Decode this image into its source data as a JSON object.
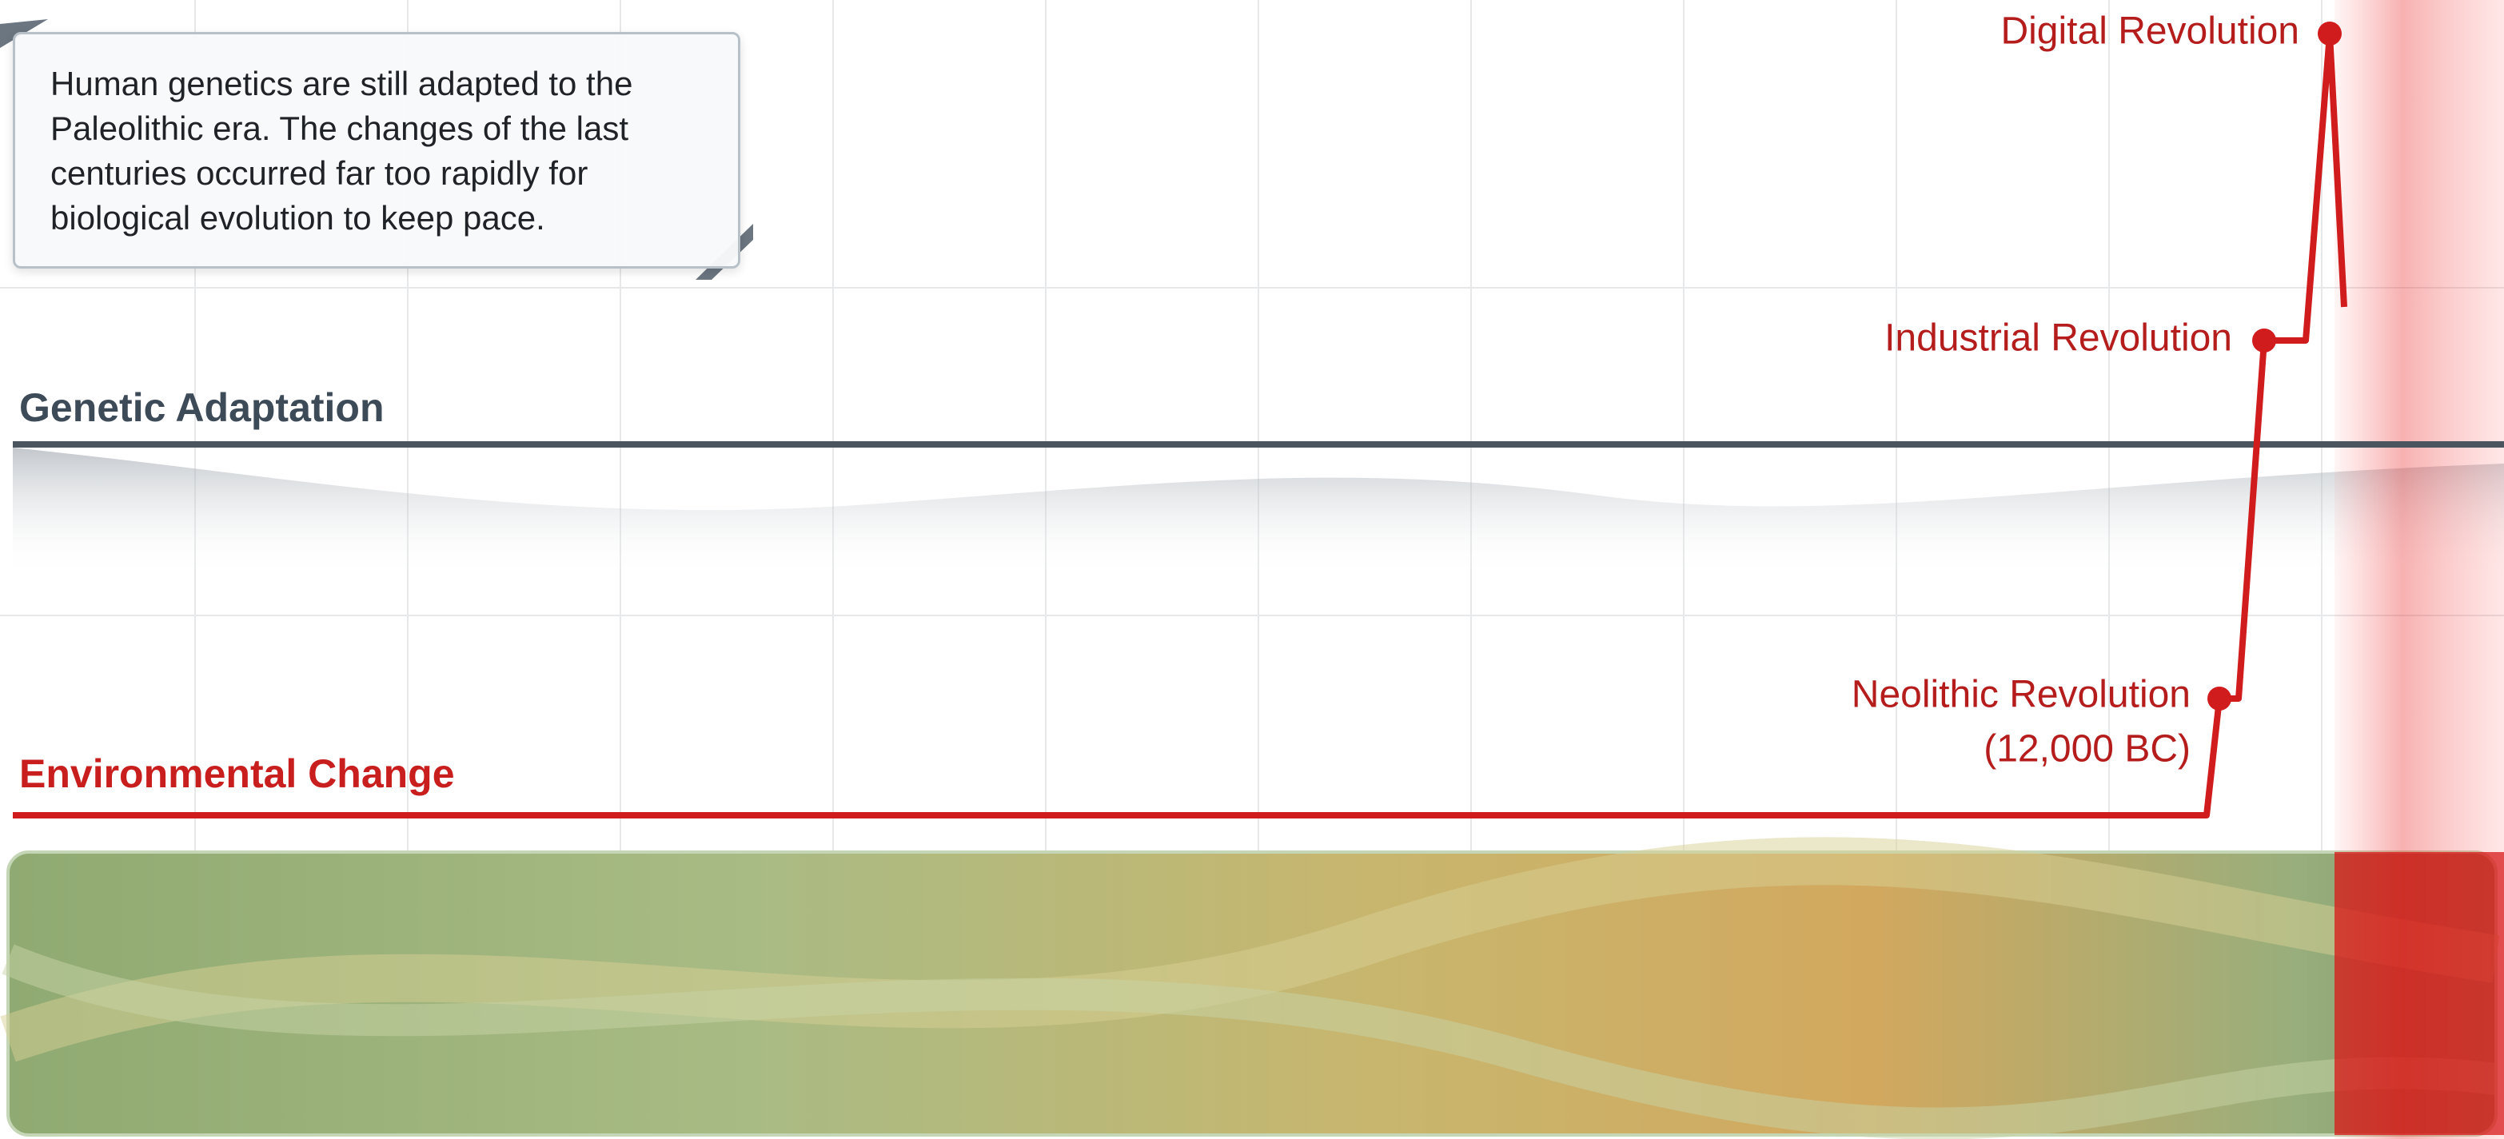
{
  "callout": "Human genetics are still adapted to the Paleolithic era. The changes of the last centuries occurred far too rapidly for biological evolution to keep pace.",
  "lines": [
    {
      "label": "Genetic Adaptation"
    },
    {
      "label": "Environmental Change"
    }
  ],
  "milestones": [
    {
      "label": "Neolithic Revolution",
      "sublabel": "(12,000 BC)"
    },
    {
      "label": "Industrial Revolution"
    },
    {
      "label": "Digital Revolution"
    }
  ]
}
